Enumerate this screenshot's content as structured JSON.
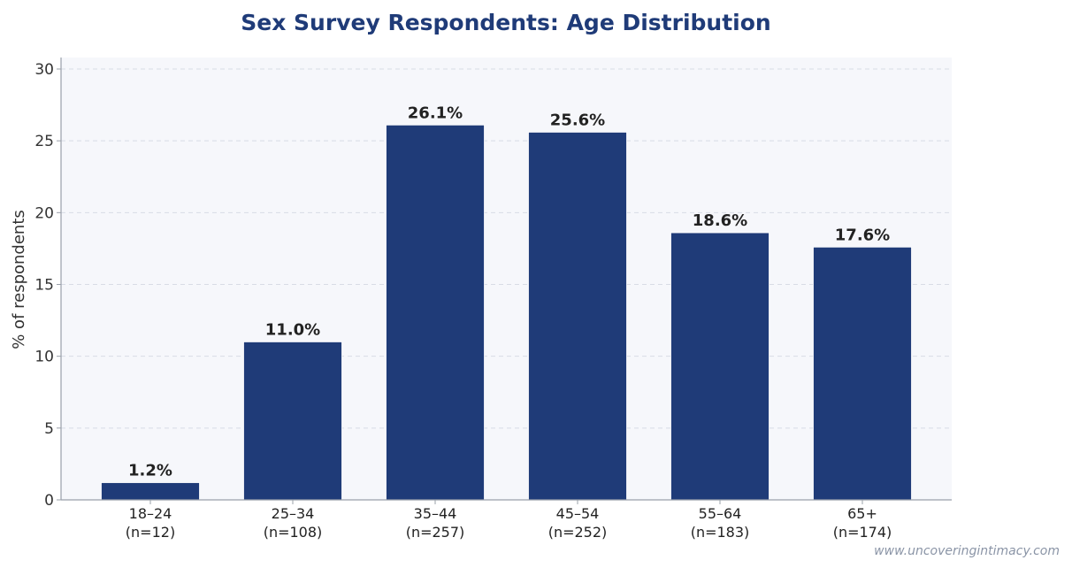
{
  "chart_data": {
    "type": "bar",
    "title": "Sex Survey Respondents: Age Distribution",
    "xlabel": "",
    "ylabel": "% of respondents",
    "ylim": [
      0,
      30.8
    ],
    "yticks": [
      "0",
      "5",
      "10",
      "15",
      "20",
      "25",
      "30"
    ],
    "categories": [
      "18–24",
      "25–34",
      "35–44",
      "45–54",
      "55–64",
      "65+"
    ],
    "sample_sizes": [
      "(n=12)",
      "(n=108)",
      "(n=257)",
      "(n=252)",
      "(n=183)",
      "(n=174)"
    ],
    "values": [
      1.2,
      11.0,
      26.1,
      25.6,
      18.6,
      17.6
    ],
    "data_labels": [
      "1.2%",
      "11.0%",
      "26.1%",
      "25.6%",
      "18.6%",
      "17.6%"
    ],
    "grid": true,
    "bar_color": "#1f3b78",
    "plot_background": "#f6f7fb"
  },
  "watermark": "www.uncoveringintimacy.com"
}
